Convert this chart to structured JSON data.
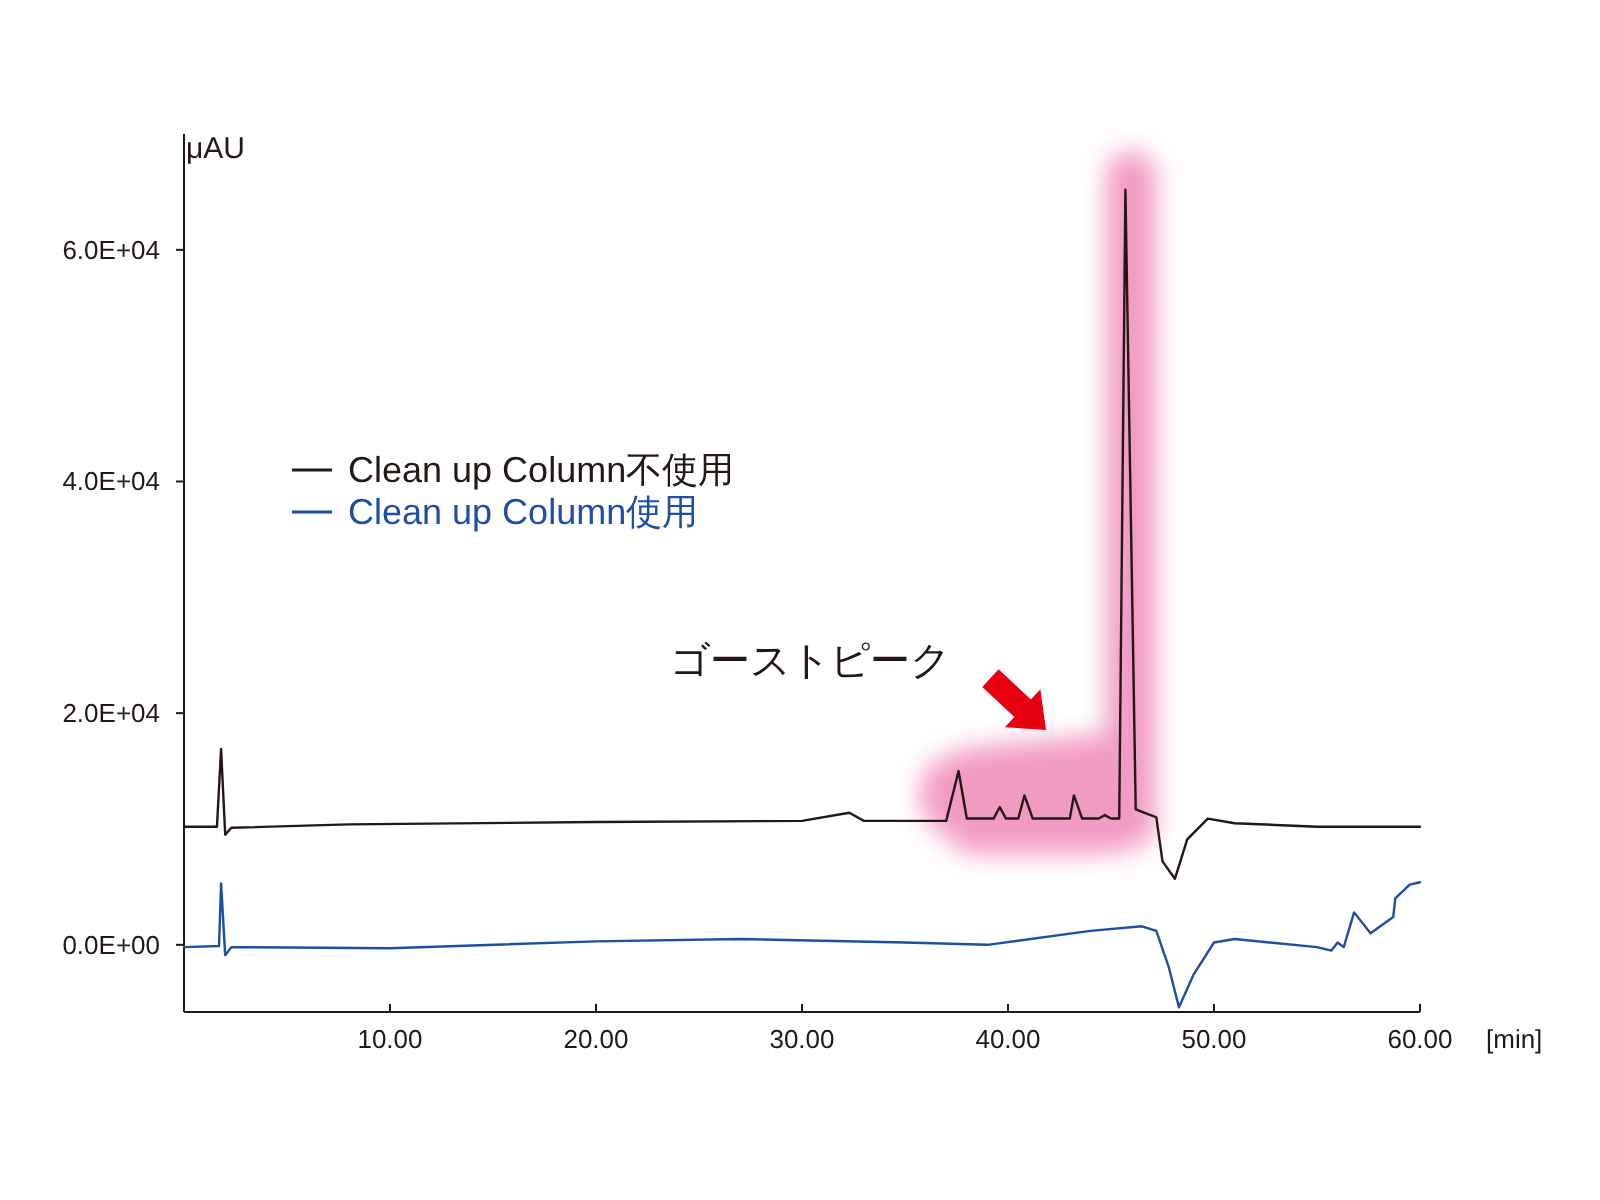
{
  "chart_data": {
    "type": "line",
    "ylabel": "μAU",
    "xlabel": "[min]",
    "xlim": [
      0,
      60
    ],
    "ylim": [
      -5800,
      70000
    ],
    "xticks": [
      {
        "value": 10,
        "label": "10.00"
      },
      {
        "value": 20,
        "label": "20.00"
      },
      {
        "value": 30,
        "label": "30.00"
      },
      {
        "value": 40,
        "label": "40.00"
      },
      {
        "value": 50,
        "label": "50.00"
      },
      {
        "value": 60,
        "label": "60.00"
      }
    ],
    "yticks": [
      {
        "value": 0,
        "label": "0.0E+00"
      },
      {
        "value": 20000,
        "label": "2.0E+04"
      },
      {
        "value": 40000,
        "label": "4.0E+04"
      },
      {
        "value": 60000,
        "label": "6.0E+04"
      }
    ],
    "legend": "left",
    "grid": false,
    "marker": "none",
    "line_style": "solid",
    "annotations": [
      "ゴーストピーク"
    ],
    "series": [
      {
        "name": "Clean up Column不使用",
        "color": "#231815",
        "x": [
          0,
          1.6,
          1.8,
          2.0,
          2.3,
          8,
          20,
          30,
          32.3,
          33,
          37,
          37.6,
          38,
          39.3,
          39.6,
          39.9,
          40.5,
          40.8,
          41.2,
          43,
          43.2,
          43.6,
          44.4,
          44.7,
          45,
          45.4,
          45.7,
          46.2,
          47.2,
          47.5,
          48.1,
          48.7,
          49.7,
          51,
          55,
          60
        ],
        "values": [
          10200,
          10200,
          16900,
          9500,
          10100,
          10400,
          10600,
          10700,
          11400,
          10700,
          10700,
          15000,
          10900,
          10900,
          11900,
          10900,
          10900,
          12900,
          10900,
          10900,
          12900,
          10900,
          10900,
          11200,
          10900,
          10900,
          65200,
          11700,
          11000,
          7200,
          5700,
          9100,
          10900,
          10500,
          10200,
          10200
        ]
      },
      {
        "name": "Clean up Column使用",
        "color": "#1d50a2",
        "x": [
          0,
          1.7,
          1.8,
          2.0,
          2.3,
          10,
          20,
          27,
          35,
          39,
          44,
          46.5,
          47.2,
          47.8,
          48.3,
          49,
          50,
          51,
          55,
          55.7,
          56,
          56.3,
          56.8,
          57.6,
          58.7,
          58.8,
          59.5,
          60
        ],
        "values": [
          -200,
          -100,
          5300,
          -900,
          -200,
          -300,
          300,
          500,
          200,
          0,
          1200,
          1600,
          1200,
          -1900,
          -5400,
          -2600,
          200,
          500,
          -200,
          -500,
          200,
          -200,
          2800,
          1000,
          2400,
          4000,
          5200,
          5400
        ]
      }
    ]
  }
}
